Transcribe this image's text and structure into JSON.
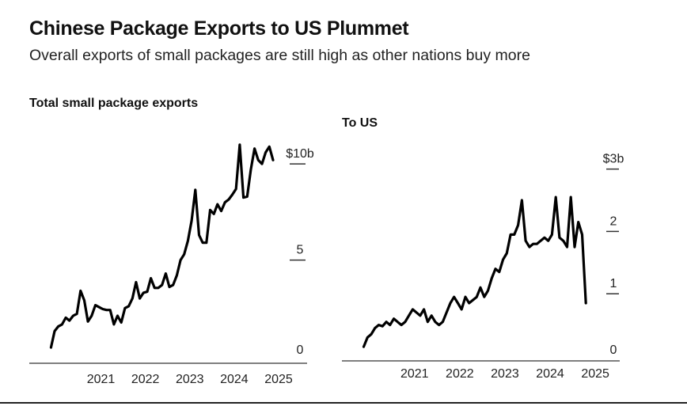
{
  "title": "Chinese Package Exports to US Plummet",
  "subtitle": "Overall exports of small packages are still high as other nations buy more",
  "chart_data": [
    {
      "type": "line",
      "title": "Total small package exports",
      "y_unit_prefix": "$",
      "y_unit_suffix": "b",
      "y_ticks": [
        {
          "value": 0,
          "label": "0"
        },
        {
          "value": 5,
          "label": "5"
        },
        {
          "value": 10,
          "label": "$10b"
        }
      ],
      "ylim": [
        0,
        11.2
      ],
      "x_ticks": [
        "2021",
        "2022",
        "2023",
        "2024",
        "2025"
      ],
      "xlim": [
        "2020-03",
        "2025-05"
      ],
      "grid": false,
      "series": [
        {
          "color": "#000000",
          "x": [
            "2020-05",
            "2020-06",
            "2020-07",
            "2020-08",
            "2020-09",
            "2020-10",
            "2020-11",
            "2020-12",
            "2021-01",
            "2021-02",
            "2021-03",
            "2021-04",
            "2021-05",
            "2021-06",
            "2021-07",
            "2021-08",
            "2021-09",
            "2021-10",
            "2021-11",
            "2021-12",
            "2022-01",
            "2022-02",
            "2022-03",
            "2022-04",
            "2022-05",
            "2022-06",
            "2022-07",
            "2022-08",
            "2022-09",
            "2022-10",
            "2022-11",
            "2022-12",
            "2023-01",
            "2023-02",
            "2023-03",
            "2023-04",
            "2023-05",
            "2023-06",
            "2023-07",
            "2023-08",
            "2023-09",
            "2023-10",
            "2023-11",
            "2023-12",
            "2024-01",
            "2024-02",
            "2024-03",
            "2024-04",
            "2024-05",
            "2024-06",
            "2024-07",
            "2024-08",
            "2024-09",
            "2024-10",
            "2024-11",
            "2024-12",
            "2025-01",
            "2025-02",
            "2025-03",
            "2025-04",
            "2025-05"
          ],
          "values": [
            0.45,
            1.3,
            1.55,
            1.65,
            2.0,
            1.85,
            2.1,
            2.2,
            3.4,
            2.9,
            1.8,
            2.1,
            2.65,
            2.55,
            2.45,
            2.4,
            2.4,
            1.65,
            2.1,
            1.75,
            2.5,
            2.6,
            3.0,
            3.85,
            3.0,
            3.3,
            3.35,
            4.05,
            3.55,
            3.55,
            3.7,
            4.3,
            3.6,
            3.7,
            4.2,
            5.0,
            5.3,
            6.0,
            7.05,
            8.65,
            6.3,
            5.9,
            5.9,
            7.6,
            7.4,
            7.9,
            7.55,
            8.0,
            8.15,
            8.4,
            8.7,
            11.0,
            8.25,
            8.3,
            9.7,
            10.8,
            10.2,
            10.0,
            10.6,
            10.9,
            10.2
          ]
        }
      ]
    },
    {
      "type": "line",
      "title": "To US",
      "y_unit_prefix": "$",
      "y_unit_suffix": "b",
      "y_ticks": [
        {
          "value": 0,
          "label": "0"
        },
        {
          "value": 1,
          "label": "1"
        },
        {
          "value": 2,
          "label": "2"
        },
        {
          "value": 3,
          "label": "$3b"
        }
      ],
      "ylim": [
        0,
        3.3
      ],
      "x_ticks": [
        "2021",
        "2022",
        "2023",
        "2024",
        "2025"
      ],
      "xlim": [
        "2020-03",
        "2025-05"
      ],
      "grid": false,
      "series": [
        {
          "color": "#000000",
          "x": [
            "2020-05",
            "2020-06",
            "2020-07",
            "2020-08",
            "2020-09",
            "2020-10",
            "2020-11",
            "2020-12",
            "2021-01",
            "2021-02",
            "2021-03",
            "2021-04",
            "2021-05",
            "2021-06",
            "2021-07",
            "2021-08",
            "2021-09",
            "2021-10",
            "2021-11",
            "2021-12",
            "2022-01",
            "2022-02",
            "2022-03",
            "2022-04",
            "2022-05",
            "2022-06",
            "2022-07",
            "2022-08",
            "2022-09",
            "2022-10",
            "2022-11",
            "2022-12",
            "2023-01",
            "2023-02",
            "2023-03",
            "2023-04",
            "2023-05",
            "2023-06",
            "2023-07",
            "2023-08",
            "2023-09",
            "2023-10",
            "2023-11",
            "2023-12",
            "2024-01",
            "2024-02",
            "2024-03",
            "2024-04",
            "2024-05",
            "2024-06",
            "2024-07",
            "2024-08",
            "2024-09",
            "2024-10",
            "2024-11",
            "2024-12",
            "2025-01",
            "2025-02",
            "2025-03",
            "2025-04"
          ],
          "values": [
            0.15,
            0.3,
            0.35,
            0.45,
            0.5,
            0.48,
            0.55,
            0.5,
            0.6,
            0.55,
            0.5,
            0.55,
            0.65,
            0.75,
            0.7,
            0.65,
            0.75,
            0.55,
            0.65,
            0.55,
            0.5,
            0.55,
            0.7,
            0.85,
            0.95,
            0.85,
            0.75,
            0.95,
            0.85,
            0.9,
            0.95,
            1.1,
            0.95,
            1.05,
            1.25,
            1.4,
            1.35,
            1.55,
            1.65,
            1.95,
            1.95,
            2.1,
            2.5,
            1.85,
            1.75,
            1.8,
            1.8,
            1.85,
            1.9,
            1.85,
            1.95,
            2.55,
            1.9,
            1.85,
            1.75,
            2.55,
            1.75,
            2.15,
            1.95,
            0.85
          ]
        }
      ]
    }
  ]
}
